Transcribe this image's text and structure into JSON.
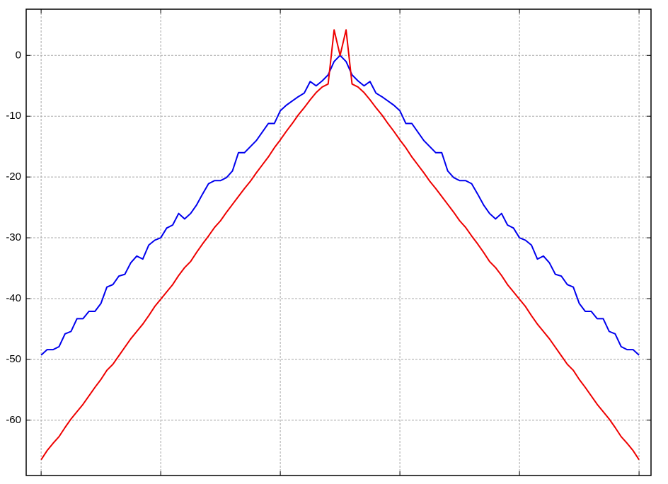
{
  "chart_data": {
    "type": "line",
    "x": [
      0,
      1,
      2,
      3,
      4,
      5,
      6,
      7,
      8,
      9,
      10,
      11,
      12,
      13,
      14,
      15,
      16,
      17,
      18,
      19,
      20,
      21,
      22,
      23,
      24,
      25,
      26,
      27,
      28,
      29,
      30,
      31,
      32,
      33,
      34,
      35,
      36,
      37,
      38,
      39,
      40,
      41,
      42,
      43,
      44,
      45,
      46,
      47,
      48,
      49,
      50,
      51,
      52,
      53,
      54,
      55,
      56,
      57,
      58,
      59,
      60,
      61,
      62,
      63,
      64,
      65,
      66,
      67,
      68,
      69,
      70,
      71,
      72,
      73,
      74,
      75,
      76,
      77,
      78,
      79,
      80,
      81,
      82,
      83,
      84,
      85,
      86,
      87,
      88,
      89,
      90,
      91,
      92,
      93,
      94,
      95,
      96,
      97,
      98,
      99,
      100
    ],
    "series": [
      {
        "color": "#0000ee",
        "values": [
          -49.3,
          -48.4,
          -48.4,
          -47.9,
          -45.8,
          -45.4,
          -43.3,
          -43.3,
          -42.1,
          -42.1,
          -40.8,
          -38.1,
          -37.7,
          -36.3,
          -36,
          -34.1,
          -33,
          -33.5,
          -31.2,
          -30.4,
          -30,
          -28.4,
          -27.9,
          -26,
          -26.9,
          -26,
          -24.6,
          -22.8,
          -21.1,
          -20.6,
          -20.6,
          -20.1,
          -19,
          -16,
          -16,
          -15,
          -14,
          -12.6,
          -11.2,
          -11.2,
          -9.1,
          -8.2,
          -7.5,
          -6.8,
          -6.2,
          -4.3,
          -5,
          -4.2,
          -3.2,
          -1,
          0,
          -1,
          -3.2,
          -4.2,
          -5,
          -4.3,
          -6.2,
          -6.8,
          -7.5,
          -8.2,
          -9.1,
          -11.2,
          -11.2,
          -12.6,
          -14,
          -15,
          -16,
          -16,
          -19,
          -20.1,
          -20.6,
          -20.6,
          -21.1,
          -22.8,
          -24.6,
          -26,
          -26.9,
          -26,
          -27.9,
          -28.4,
          -30,
          -30.4,
          -31.2,
          -33.5,
          -33,
          -34.1,
          -36,
          -36.3,
          -37.7,
          -38.1,
          -40.8,
          -42.1,
          -42.1,
          -43.3,
          -43.3,
          -45.4,
          -45.8,
          -47.9,
          -48.4,
          -48.4,
          -49.3
        ]
      },
      {
        "color": "#ee0000",
        "values": [
          -66.5,
          -65,
          -63.8,
          -62.7,
          -61.2,
          -59.8,
          -58.6,
          -57.4,
          -56,
          -54.6,
          -53.3,
          -51.8,
          -50.8,
          -49.4,
          -48,
          -46.6,
          -45.4,
          -44.2,
          -42.8,
          -41.3,
          -40.1,
          -38.9,
          -37.7,
          -36.2,
          -34.9,
          -33.9,
          -32.4,
          -31,
          -29.7,
          -28.3,
          -27.2,
          -25.8,
          -24.5,
          -23.2,
          -21.9,
          -20.7,
          -19.3,
          -18,
          -16.7,
          -15.2,
          -13.9,
          -12.5,
          -11.2,
          -9.8,
          -8.6,
          -7.3,
          -6.1,
          -5.2,
          -4.7,
          4.2,
          0,
          4.2,
          -4.7,
          -5.2,
          -6.1,
          -7.3,
          -8.6,
          -9.8,
          -11.2,
          -12.5,
          -13.9,
          -15.2,
          -16.7,
          -18,
          -19.3,
          -20.7,
          -21.9,
          -23.2,
          -24.5,
          -25.8,
          -27.2,
          -28.3,
          -29.7,
          -31,
          -32.4,
          -33.9,
          -34.9,
          -36.2,
          -37.7,
          -38.9,
          -40.1,
          -41.3,
          -42.8,
          -44.2,
          -45.4,
          -46.6,
          -48,
          -49.4,
          -50.8,
          -51.8,
          -53.3,
          -54.6,
          -56,
          -57.4,
          -58.6,
          -59.8,
          -61.2,
          -62.7,
          -63.8,
          -65,
          -66.5
        ]
      }
    ],
    "xlim": [
      -2.5,
      102
    ],
    "ylim": [
      -69.1,
      7.6
    ],
    "xticks": [
      0,
      20,
      40,
      60,
      80,
      100
    ],
    "yticks": [
      0,
      -10,
      -20,
      -30,
      -40,
      -50,
      -60
    ],
    "grid": true
  }
}
